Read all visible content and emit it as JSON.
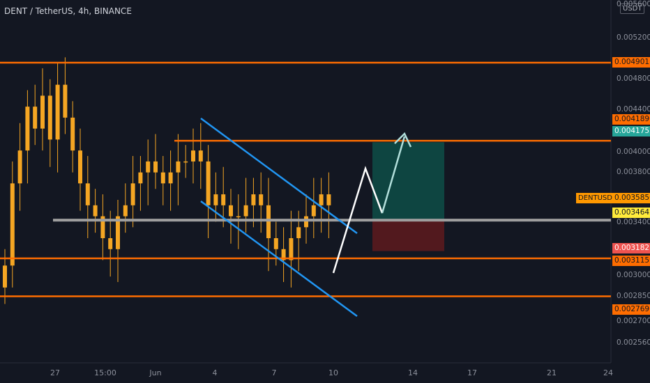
{
  "header": {
    "title": "DENT / TetherUS, 4h, BINANCE",
    "currency": "USDT"
  },
  "y_axis": {
    "ticks": [
      "0.0056000",
      "0.0052000",
      "0.0048000",
      "0.0044000",
      "0.0040000",
      "0.0038000",
      "0.0034000",
      "0.0030000",
      "0.0028500",
      "0.0027000",
      "0.0025600"
    ]
  },
  "x_axis": {
    "ticks": [
      "27",
      "15:00",
      "Jun",
      "4",
      "7",
      "10",
      "14",
      "17",
      "21",
      "24"
    ]
  },
  "price_tags": {
    "level_0049013": "0.0049013",
    "level_0041890": "0.0041890",
    "target_0041752": "0.0041752",
    "symbol": "DENTUSDT",
    "current": "0.0035850",
    "entry": "0.0034642",
    "stop": "0.0031823",
    "level_0031159": "0.0031159",
    "level_0027696": "0.0027696"
  },
  "colors": {
    "background": "#131722",
    "candle": "#f5a623",
    "horizontal_level": "#ff6d00",
    "channel": "#2196f3",
    "support": "#9e9e9e",
    "target_zone": "#0e4d46",
    "stop_zone": "#5a1a1e",
    "projection": "#ffffff",
    "projection_target": "#b2dfdb"
  },
  "chart_data": {
    "type": "candlestick",
    "symbol": "DENTUSDT",
    "timeframe": "4h",
    "exchange": "BINANCE",
    "ylim": [
      0.00245,
      0.0058
    ],
    "horizontal_levels": [
      0.0049013,
      0.004189,
      0.0031159,
      0.0027696
    ],
    "support_level": 0.0034642,
    "position": {
      "entry": 0.0034642,
      "target": 0.0041752,
      "stop": 0.0031823
    },
    "last_price": 0.003585,
    "closes_approx": [
      0.00305,
      0.0038,
      0.0041,
      0.0045,
      0.0043,
      0.0046,
      0.0042,
      0.0047,
      0.0044,
      0.0041,
      0.0038,
      0.0036,
      0.0035,
      0.0033,
      0.0032,
      0.0035,
      0.0036,
      0.0038,
      0.0039,
      0.004,
      0.0039,
      0.0038,
      0.0039,
      0.004,
      0.004,
      0.0041,
      0.004,
      0.0036,
      0.0037,
      0.0036,
      0.0035,
      0.0035,
      0.0036,
      0.0037,
      0.0036,
      0.0033,
      0.0032,
      0.0031,
      0.0033,
      0.0034,
      0.0035,
      0.0036,
      0.0037,
      0.0036
    ]
  }
}
